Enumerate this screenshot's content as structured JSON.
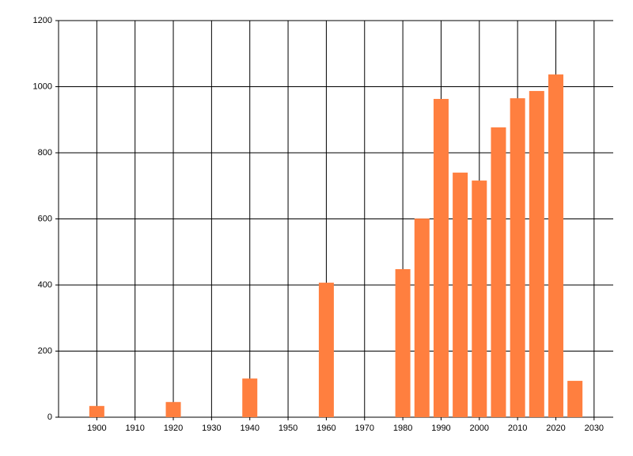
{
  "chart_data": {
    "type": "bar",
    "x": [
      1900,
      1920,
      1940,
      1960,
      1980,
      1985,
      1990,
      1995,
      2000,
      2005,
      2010,
      2015,
      2020,
      2025
    ],
    "values": [
      34,
      46,
      117,
      407,
      448,
      601,
      963,
      740,
      716,
      877,
      965,
      987,
      1037,
      110
    ],
    "color": "#ff7f3f",
    "xlim": [
      1890,
      2035
    ],
    "xticks": [
      1900,
      1910,
      1920,
      1930,
      1940,
      1950,
      1960,
      1970,
      1980,
      1990,
      2000,
      2010,
      2020,
      2030
    ],
    "ylim": [
      0,
      1200
    ],
    "yticks": [
      0,
      200,
      400,
      600,
      800,
      1000,
      1200
    ],
    "grid": true
  }
}
